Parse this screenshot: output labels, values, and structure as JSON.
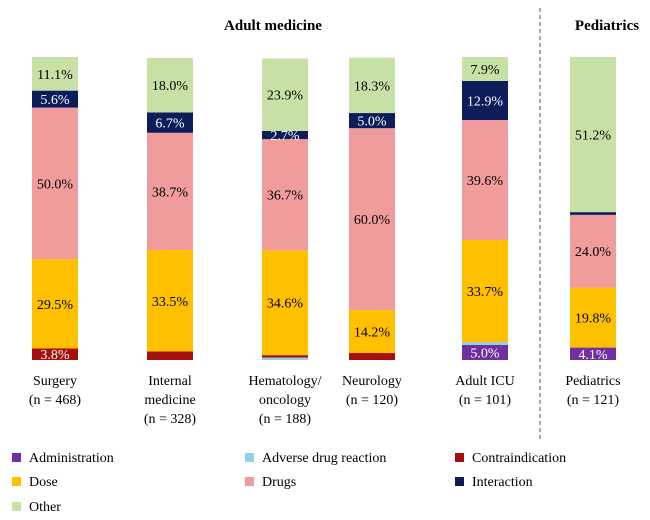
{
  "chart_data": {
    "type": "bar",
    "stacked": true,
    "percent_scale": true,
    "ylim": [
      0,
      100
    ],
    "groups": [
      {
        "title": "Adult medicine",
        "categories": [
          0,
          1,
          2,
          3,
          4
        ]
      },
      {
        "title": "Pediatrics",
        "categories": [
          5
        ]
      }
    ],
    "categories": [
      {
        "name": "Surgery",
        "n": "(n = 468)"
      },
      {
        "name": "Internal medicine",
        "n": "(n = 328)"
      },
      {
        "name": "Hematology/ oncology",
        "n": "(n = 188)"
      },
      {
        "name": "Neurology",
        "n": "(n = 120)"
      },
      {
        "name": "Adult ICU",
        "n": "(n = 101)"
      },
      {
        "name": "Pediatrics",
        "n": "(n = 121)"
      }
    ],
    "series": [
      {
        "name": "Administration",
        "color": "#7030a0",
        "values": [
          0,
          0,
          0,
          0,
          5.0,
          4.1
        ],
        "labels": [
          "",
          "",
          "",
          "",
          "5.0%",
          "4.1%"
        ]
      },
      {
        "name": "Adverse drug reaction",
        "color": "#8fd0e8",
        "values": [
          0,
          0,
          0.8,
          0,
          0.9,
          0
        ],
        "labels": [
          "",
          "",
          "",
          "",
          "",
          ""
        ]
      },
      {
        "name": "Contraindication",
        "color": "#a50f0f",
        "values": [
          3.8,
          2.8,
          0.8,
          2.3,
          0,
          0
        ],
        "labels": [
          "3.8%",
          "",
          "",
          "",
          "",
          ""
        ]
      },
      {
        "name": "Dose",
        "color": "#ffc000",
        "values": [
          29.5,
          33.5,
          34.6,
          14.2,
          33.7,
          19.8
        ],
        "labels": [
          "29.5%",
          "33.5%",
          "34.6%",
          "14.2%",
          "33.7%",
          "19.8%"
        ]
      },
      {
        "name": "Drugs",
        "color": "#f19c9c",
        "values": [
          50.0,
          38.7,
          36.7,
          60.0,
          39.6,
          24.0
        ],
        "labels": [
          "50.0%",
          "38.7%",
          "36.7%",
          "60.0%",
          "39.6%",
          "24.0%"
        ]
      },
      {
        "name": "Interaction",
        "color": "#0d1d5a",
        "values": [
          5.6,
          6.7,
          2.7,
          5.0,
          12.9,
          0.9
        ],
        "labels": [
          "5.6%",
          "6.7%",
          "2.7%",
          "5.0%",
          "12.9%",
          ""
        ]
      },
      {
        "name": "Other",
        "color": "#c6e0a6",
        "values": [
          11.1,
          18.0,
          23.9,
          18.3,
          7.9,
          51.2
        ],
        "labels": [
          "11.1%",
          "18.0%",
          "23.9%",
          "18.3%",
          "7.9%",
          "51.2%"
        ]
      }
    ],
    "legend_position": "bottom",
    "grid": false
  }
}
